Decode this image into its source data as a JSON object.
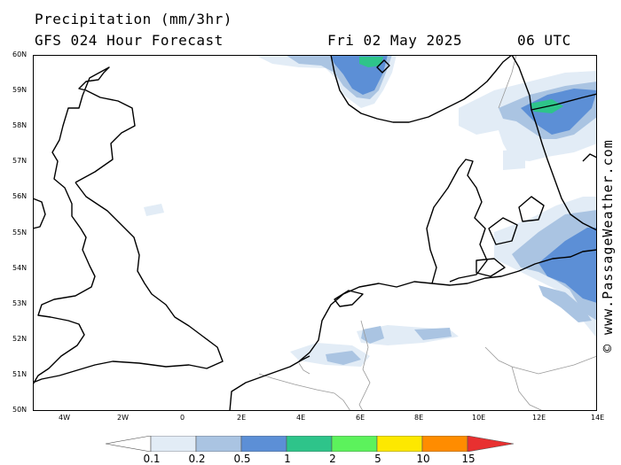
{
  "header": {
    "title": "Precipitation (mm/3hr)",
    "subtitle": "GFS 024 Hour Forecast",
    "date": "Fri 02 May 2025",
    "time": "06 UTC"
  },
  "credit": "© www.PassageWeather.com",
  "axes": {
    "lat_labels": [
      "60N",
      "59N",
      "58N",
      "57N",
      "56N",
      "55N",
      "54N",
      "53N",
      "52N",
      "51N",
      "50N"
    ],
    "lon_labels": [
      "4W",
      "2W",
      "0",
      "2E",
      "4E",
      "6E",
      "8E",
      "10E",
      "12E",
      "14E"
    ]
  },
  "legend": {
    "levels": [
      "0.1",
      "0.2",
      "0.5",
      "1",
      "2",
      "5",
      "10",
      "15"
    ],
    "colors": [
      "#ffffff",
      "#e2ecf6",
      "#aac4e2",
      "#5c8fd6",
      "#2ec48a",
      "#5cf25c",
      "#fde800",
      "#ff8c00",
      "#e83030"
    ]
  }
}
